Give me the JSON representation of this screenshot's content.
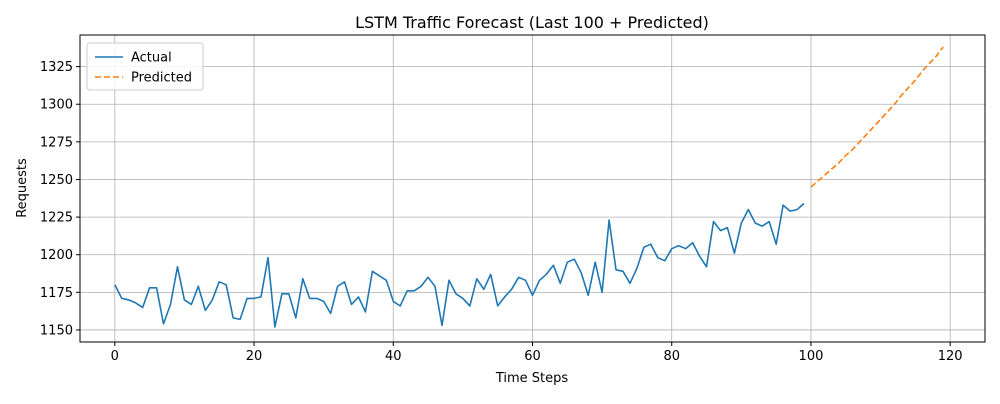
{
  "chart_data": {
    "type": "line",
    "title": "LSTM Traffic Forecast (Last 100 + Predicted)",
    "xlabel": "Time Steps",
    "ylabel": "Requests",
    "xlim": [
      -5,
      125
    ],
    "ylim": [
      1142,
      1346
    ],
    "xticks": [
      0,
      20,
      40,
      60,
      80,
      100,
      120
    ],
    "yticks": [
      1150,
      1175,
      1200,
      1225,
      1250,
      1275,
      1300,
      1325
    ],
    "grid": true,
    "legend_position": "upper-left",
    "series": [
      {
        "name": "Actual",
        "color": "#1f77b4",
        "style": "solid",
        "x_start": 0,
        "values": [
          1180,
          1171,
          1170,
          1168,
          1165,
          1178,
          1178,
          1154,
          1167,
          1192,
          1170,
          1167,
          1179,
          1163,
          1170,
          1182,
          1180,
          1158,
          1157,
          1171,
          1171,
          1172,
          1198,
          1152,
          1174,
          1174,
          1158,
          1184,
          1171,
          1171,
          1169,
          1161,
          1179,
          1182,
          1167,
          1172,
          1162,
          1189,
          1186,
          1183,
          1169,
          1166,
          1176,
          1176,
          1179,
          1185,
          1179,
          1153,
          1183,
          1174,
          1171,
          1166,
          1184,
          1177,
          1187,
          1166,
          1172,
          1177,
          1185,
          1183,
          1173,
          1183,
          1187,
          1193,
          1181,
          1195,
          1197,
          1188,
          1173,
          1195,
          1175,
          1223,
          1190,
          1189,
          1181,
          1191,
          1205,
          1207,
          1198,
          1196,
          1204,
          1206,
          1204,
          1208,
          1199,
          1192,
          1222,
          1216,
          1218,
          1201,
          1221,
          1230,
          1221,
          1219,
          1222,
          1207,
          1233,
          1229,
          1230,
          1234
        ]
      },
      {
        "name": "Predicted",
        "color": "#ff7f0e",
        "style": "dashed",
        "x_start": 100,
        "values": [
          1245,
          1249,
          1253,
          1257,
          1261,
          1266,
          1270,
          1275,
          1280,
          1285,
          1290,
          1295,
          1300,
          1306,
          1311,
          1316,
          1322,
          1327,
          1332,
          1338
        ]
      }
    ]
  }
}
